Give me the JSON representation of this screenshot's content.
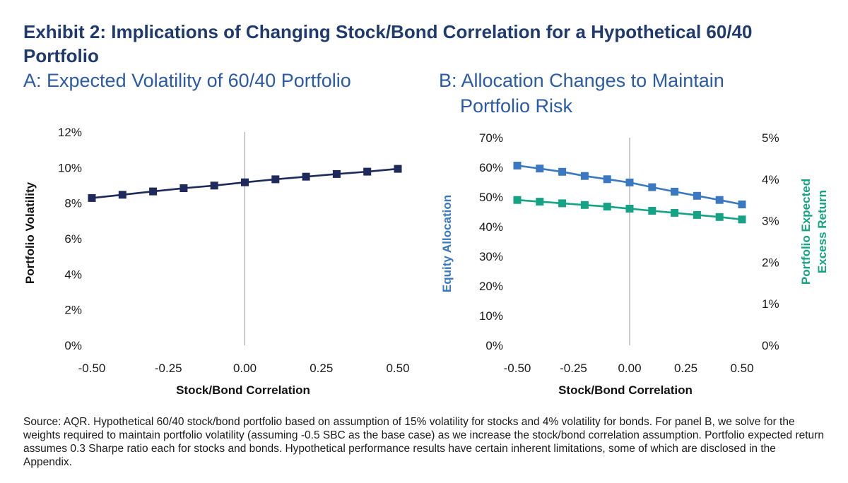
{
  "header": {
    "title": "Exhibit 2: Implications of Changing Stock/Bond Correlation for a Hypothetical 60/40 Portfolio"
  },
  "source_note": "Source: AQR. Hypothetical 60/40 stock/bond portfolio based on assumption of 15% volatility for stocks and 4% volatility for bonds. For panel B, we solve for the weights required to maintain portfolio volatility (assuming -0.5 SBC as the base case) as we increase the stock/bond correlation assumption. Portfolio expected return assumes 0.3 Sharpe ratio each for stocks and bonds. Hypothetical performance results have certain inherent limitations, some of which are disclosed in the Appendix.",
  "colors": {
    "title": "#1e3a6e",
    "panel_title": "#2a5aa8",
    "series_volatility": "#1f2a5c",
    "series_equity": "#3a78c2",
    "series_return": "#14a384",
    "zero_line": "#9a9a9a"
  },
  "chart_data": [
    {
      "type": "line",
      "title_line1": "A: Expected Volatility of 60/40 Portfolio",
      "title_line2": "",
      "xlabel": "Stock/Bond Correlation",
      "ylabel": "Portfolio Volatility",
      "xlim": [
        -0.5,
        0.5
      ],
      "ylim": [
        0,
        0.12
      ],
      "x_ticks": [
        -0.5,
        -0.25,
        0,
        0.25,
        0.5
      ],
      "x_tick_labels": [
        "-0.50",
        "-0.25",
        "0.00",
        "0.25",
        "0.50"
      ],
      "y_ticks": [
        0,
        0.02,
        0.04,
        0.06,
        0.08,
        0.1,
        0.12
      ],
      "y_tick_labels": [
        "0%",
        "2%",
        "4%",
        "6%",
        "8%",
        "10%",
        "12%"
      ],
      "grid": false,
      "x": [
        -0.5,
        -0.4,
        -0.3,
        -0.2,
        -0.1,
        0.0,
        0.1,
        0.2,
        0.3,
        0.4,
        0.5
      ],
      "series": [
        {
          "name": "Portfolio Volatility",
          "axis": "left",
          "color": "#1f2a5c",
          "marker": "square",
          "values": [
            0.0829,
            0.0847,
            0.0866,
            0.0884,
            0.0899,
            0.0917,
            0.0934,
            0.0949,
            0.0964,
            0.0977,
            0.0993
          ]
        }
      ]
    },
    {
      "type": "line",
      "title_line1": "B: Allocation Changes to Maintain",
      "title_line2": "Portfolio Risk",
      "xlabel": "Stock/Bond Correlation",
      "ylabel": "Equity Allocation",
      "ylabel_right_line1": "Portfolio Expected",
      "ylabel_right_line2": "Excess Return",
      "xlim": [
        -0.5,
        0.5
      ],
      "ylim": [
        0,
        0.7
      ],
      "ylim_right": [
        0,
        0.05
      ],
      "x_ticks": [
        -0.5,
        -0.25,
        0,
        0.25,
        0.5
      ],
      "x_tick_labels": [
        "-0.50",
        "-0.25",
        "0.00",
        "0.25",
        "0.50"
      ],
      "y_ticks": [
        0,
        0.1,
        0.2,
        0.3,
        0.4,
        0.5,
        0.6,
        0.7
      ],
      "y_tick_labels": [
        "0%",
        "10%",
        "20%",
        "30%",
        "40%",
        "50%",
        "60%",
        "70%"
      ],
      "y_right_ticks": [
        0,
        0.01,
        0.02,
        0.03,
        0.04,
        0.05
      ],
      "y_right_tick_labels": [
        "0%",
        "1%",
        "2%",
        "3%",
        "4%",
        "5%"
      ],
      "grid": false,
      "x": [
        -0.5,
        -0.4,
        -0.3,
        -0.2,
        -0.1,
        0.0,
        0.1,
        0.2,
        0.3,
        0.4,
        0.5
      ],
      "series": [
        {
          "name": "Equity Allocation",
          "axis": "left",
          "color": "#3a78c2",
          "marker": "square",
          "values": [
            0.606,
            0.596,
            0.585,
            0.571,
            0.56,
            0.549,
            0.533,
            0.518,
            0.504,
            0.49,
            0.475
          ]
        },
        {
          "name": "Portfolio Expected Excess Return",
          "axis": "right",
          "color": "#14a384",
          "marker": "square",
          "values": [
            0.035,
            0.0346,
            0.0342,
            0.0338,
            0.0334,
            0.0329,
            0.0324,
            0.0319,
            0.0314,
            0.0309,
            0.0303
          ]
        }
      ]
    }
  ]
}
